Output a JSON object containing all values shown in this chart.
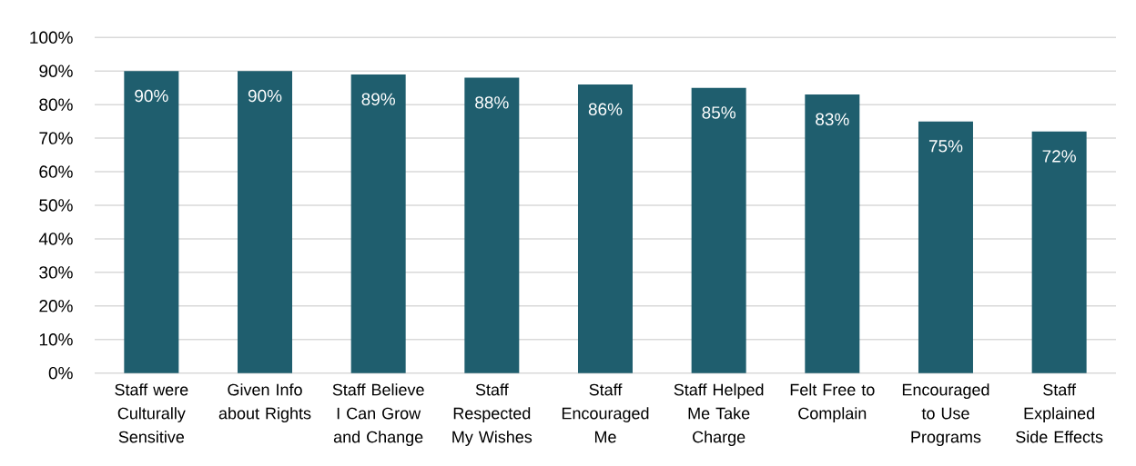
{
  "chart_data": {
    "type": "bar",
    "categories": [
      "Staff were Culturally Sensitive",
      "Given Info about Rights",
      "Staff Believe I Can Grow and Change",
      "Staff Respected My Wishes",
      "Staff Encouraged Me",
      "Staff Helped Me Take Charge",
      "Felt Free to Complain",
      "Encouraged to Use Programs",
      "Staff Explained Side Effects"
    ],
    "values": [
      90,
      90,
      89,
      88,
      86,
      85,
      83,
      75,
      72
    ],
    "value_labels": [
      "90%",
      "90%",
      "89%",
      "88%",
      "86%",
      "85%",
      "83%",
      "75%",
      "72%"
    ],
    "color": "#1f5e6e",
    "ylim": [
      0,
      100
    ],
    "yticks": [
      {
        "value": 0,
        "label": "0%"
      },
      {
        "value": 10,
        "label": "10%"
      },
      {
        "value": 20,
        "label": "20%"
      },
      {
        "value": 30,
        "label": "30%"
      },
      {
        "value": 40,
        "label": "40%"
      },
      {
        "value": 50,
        "label": "50%"
      },
      {
        "value": 60,
        "label": "60%"
      },
      {
        "value": 70,
        "label": "70%"
      },
      {
        "value": 80,
        "label": "80%"
      },
      {
        "value": 90,
        "label": "90%"
      },
      {
        "value": 100,
        "label": "100%"
      }
    ],
    "grid": "y"
  }
}
